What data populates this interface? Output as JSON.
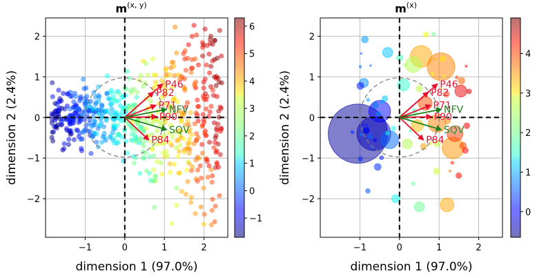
{
  "chart_data": [
    {
      "type": "scatter",
      "title_main": "m",
      "title_sup": "(x, y)",
      "xlabel": "dimension 1   (97.0%)",
      "ylabel": "dimension 2   (2.4%)",
      "xlim": [
        -2.0,
        2.6
      ],
      "ylim": [
        -2.95,
        2.45
      ],
      "xticks": [
        -1,
        0,
        1,
        2
      ],
      "yticks": [
        -2,
        -1,
        0,
        1,
        2
      ],
      "colorbar": {
        "min": -1.7,
        "max": 6.3,
        "ticks": [
          -1,
          0,
          1,
          2,
          3,
          4,
          5,
          6
        ]
      },
      "circle_radius": 1.0,
      "vectors": [
        {
          "label": "P82",
          "x": 0.72,
          "y": 0.62,
          "color": "red"
        },
        {
          "label": "P46",
          "x": 0.95,
          "y": 0.82,
          "color": "red"
        },
        {
          "label": "P71",
          "x": 0.78,
          "y": 0.3,
          "color": "red"
        },
        {
          "label": "P90",
          "x": 0.8,
          "y": 0.02,
          "color": "red"
        },
        {
          "label": "P84",
          "x": 0.6,
          "y": -0.55,
          "color": "red"
        },
        {
          "label": "NFV",
          "x": 1.05,
          "y": 0.2,
          "color": "green"
        },
        {
          "label": "SQV",
          "x": 1.05,
          "y": -0.3,
          "color": "green"
        }
      ]
    },
    {
      "type": "scatter",
      "title_main": "m",
      "title_sup": "(x)",
      "xlabel": "dimension 1   (97.0%)",
      "ylabel": "dimension 2   (2.4%)",
      "xlim": [
        -2.0,
        2.6
      ],
      "ylim": [
        -2.95,
        2.45
      ],
      "xticks": [
        -1,
        0,
        1,
        2
      ],
      "yticks": [
        -2,
        -1,
        0,
        1,
        2
      ],
      "colorbar": {
        "min": -0.65,
        "max": 4.9,
        "ticks": [
          0,
          1,
          2,
          3,
          4
        ]
      },
      "circle_radius": 1.0,
      "vectors": [
        {
          "label": "P82",
          "x": 0.72,
          "y": 0.62,
          "color": "red"
        },
        {
          "label": "P46",
          "x": 0.95,
          "y": 0.82,
          "color": "red"
        },
        {
          "label": "P71",
          "x": 0.78,
          "y": 0.3,
          "color": "red"
        },
        {
          "label": "P90",
          "x": 0.8,
          "y": 0.02,
          "color": "red"
        },
        {
          "label": "P84",
          "x": 0.6,
          "y": -0.55,
          "color": "red"
        },
        {
          "label": "NFV",
          "x": 1.05,
          "y": 0.2,
          "color": "green"
        },
        {
          "label": "SQV",
          "x": 1.05,
          "y": -0.3,
          "color": "green"
        }
      ],
      "bubbles": [
        {
          "x": -1.05,
          "y": -0.4,
          "v": -0.5,
          "s": 3.0
        },
        {
          "x": -0.65,
          "y": -0.4,
          "v": -0.3,
          "s": 1.7
        },
        {
          "x": -0.5,
          "y": 0.15,
          "v": 0.0,
          "s": 1.1
        },
        {
          "x": -0.25,
          "y": -0.55,
          "v": 0.6,
          "s": 0.9
        },
        {
          "x": 0.55,
          "y": 1.5,
          "v": 3.3,
          "s": 1.1
        },
        {
          "x": 1.05,
          "y": 1.25,
          "v": 3.5,
          "s": 1.4
        },
        {
          "x": 1.35,
          "y": -0.75,
          "v": 3.4,
          "s": 1.1
        },
        {
          "x": 1.4,
          "y": -0.4,
          "v": 3.9,
          "s": 0.8
        },
        {
          "x": 0.95,
          "y": -0.15,
          "v": 3.5,
          "s": 0.9
        },
        {
          "x": 0.65,
          "y": 0.35,
          "v": 3.8,
          "s": 0.7
        },
        {
          "x": 1.55,
          "y": 0.65,
          "v": 4.3,
          "s": 0.6
        },
        {
          "x": 1.2,
          "y": -2.15,
          "v": 3.3,
          "s": 0.7
        },
        {
          "x": 0.35,
          "y": 1.3,
          "v": 2.4,
          "s": 0.8
        },
        {
          "x": 0.1,
          "y": 0.8,
          "v": 1.7,
          "s": 0.6
        },
        {
          "x": -0.3,
          "y": 1.6,
          "v": 1.1,
          "s": 0.5
        },
        {
          "x": 0.45,
          "y": -0.2,
          "v": 3.2,
          "s": 0.6
        },
        {
          "x": 0.2,
          "y": -0.65,
          "v": 2.4,
          "s": 0.5
        },
        {
          "x": 0.5,
          "y": -2.2,
          "v": 2.0,
          "s": 0.5
        },
        {
          "x": -0.1,
          "y": -2.0,
          "v": 1.5,
          "s": 0.4
        },
        {
          "x": -0.9,
          "y": 0.85,
          "v": 0.8,
          "s": 0.45
        }
      ]
    }
  ]
}
